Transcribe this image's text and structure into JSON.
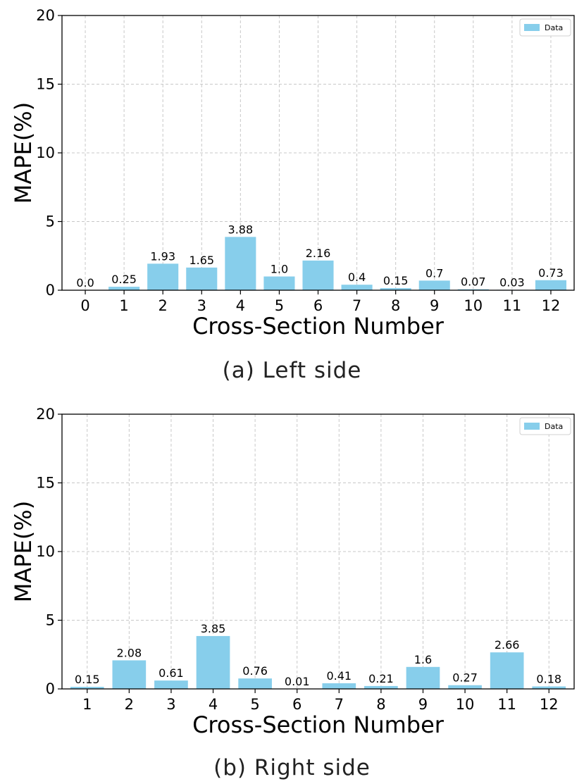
{
  "chart_data": [
    {
      "type": "bar",
      "categories": [
        "0",
        "1",
        "2",
        "3",
        "4",
        "5",
        "6",
        "7",
        "8",
        "9",
        "10",
        "11",
        "12"
      ],
      "series": [
        {
          "name": "Data",
          "values": [
            0.0,
            0.25,
            1.93,
            1.65,
            3.88,
            1.0,
            2.16,
            0.4,
            0.15,
            0.7,
            0.07,
            0.03,
            0.73
          ]
        }
      ],
      "value_labels": [
        "0.0",
        "0.25",
        "1.93",
        "1.65",
        "3.88",
        "1.0",
        "2.16",
        "0.4",
        "0.15",
        "0.7",
        "0.07",
        "0.03",
        "0.73"
      ],
      "xlabel": "Cross-Section Number",
      "ylabel": "MAPE(%)",
      "ylim": [
        0,
        20
      ],
      "yticks": [
        "0",
        "5",
        "10",
        "15",
        "20"
      ],
      "grid": true,
      "legend": "top-right",
      "bar_color": "#87ceeb",
      "caption": "(a)  Left side"
    },
    {
      "type": "bar",
      "categories": [
        "1",
        "2",
        "3",
        "4",
        "5",
        "6",
        "7",
        "8",
        "9",
        "10",
        "11",
        "12"
      ],
      "series": [
        {
          "name": "Data",
          "values": [
            0.15,
            2.08,
            0.61,
            3.85,
            0.76,
            0.01,
            0.41,
            0.21,
            1.6,
            0.27,
            2.66,
            0.18
          ]
        }
      ],
      "value_labels": [
        "0.15",
        "2.08",
        "0.61",
        "3.85",
        "0.76",
        "0.01",
        "0.41",
        "0.21",
        "1.6",
        "0.27",
        "2.66",
        "0.18"
      ],
      "xlabel": "Cross-Section Number",
      "ylabel": "MAPE(%)",
      "ylim": [
        0,
        20
      ],
      "yticks": [
        "0",
        "5",
        "10",
        "15",
        "20"
      ],
      "grid": true,
      "legend": "top-right",
      "bar_color": "#87ceeb",
      "caption": "(b)  Right side"
    }
  ]
}
